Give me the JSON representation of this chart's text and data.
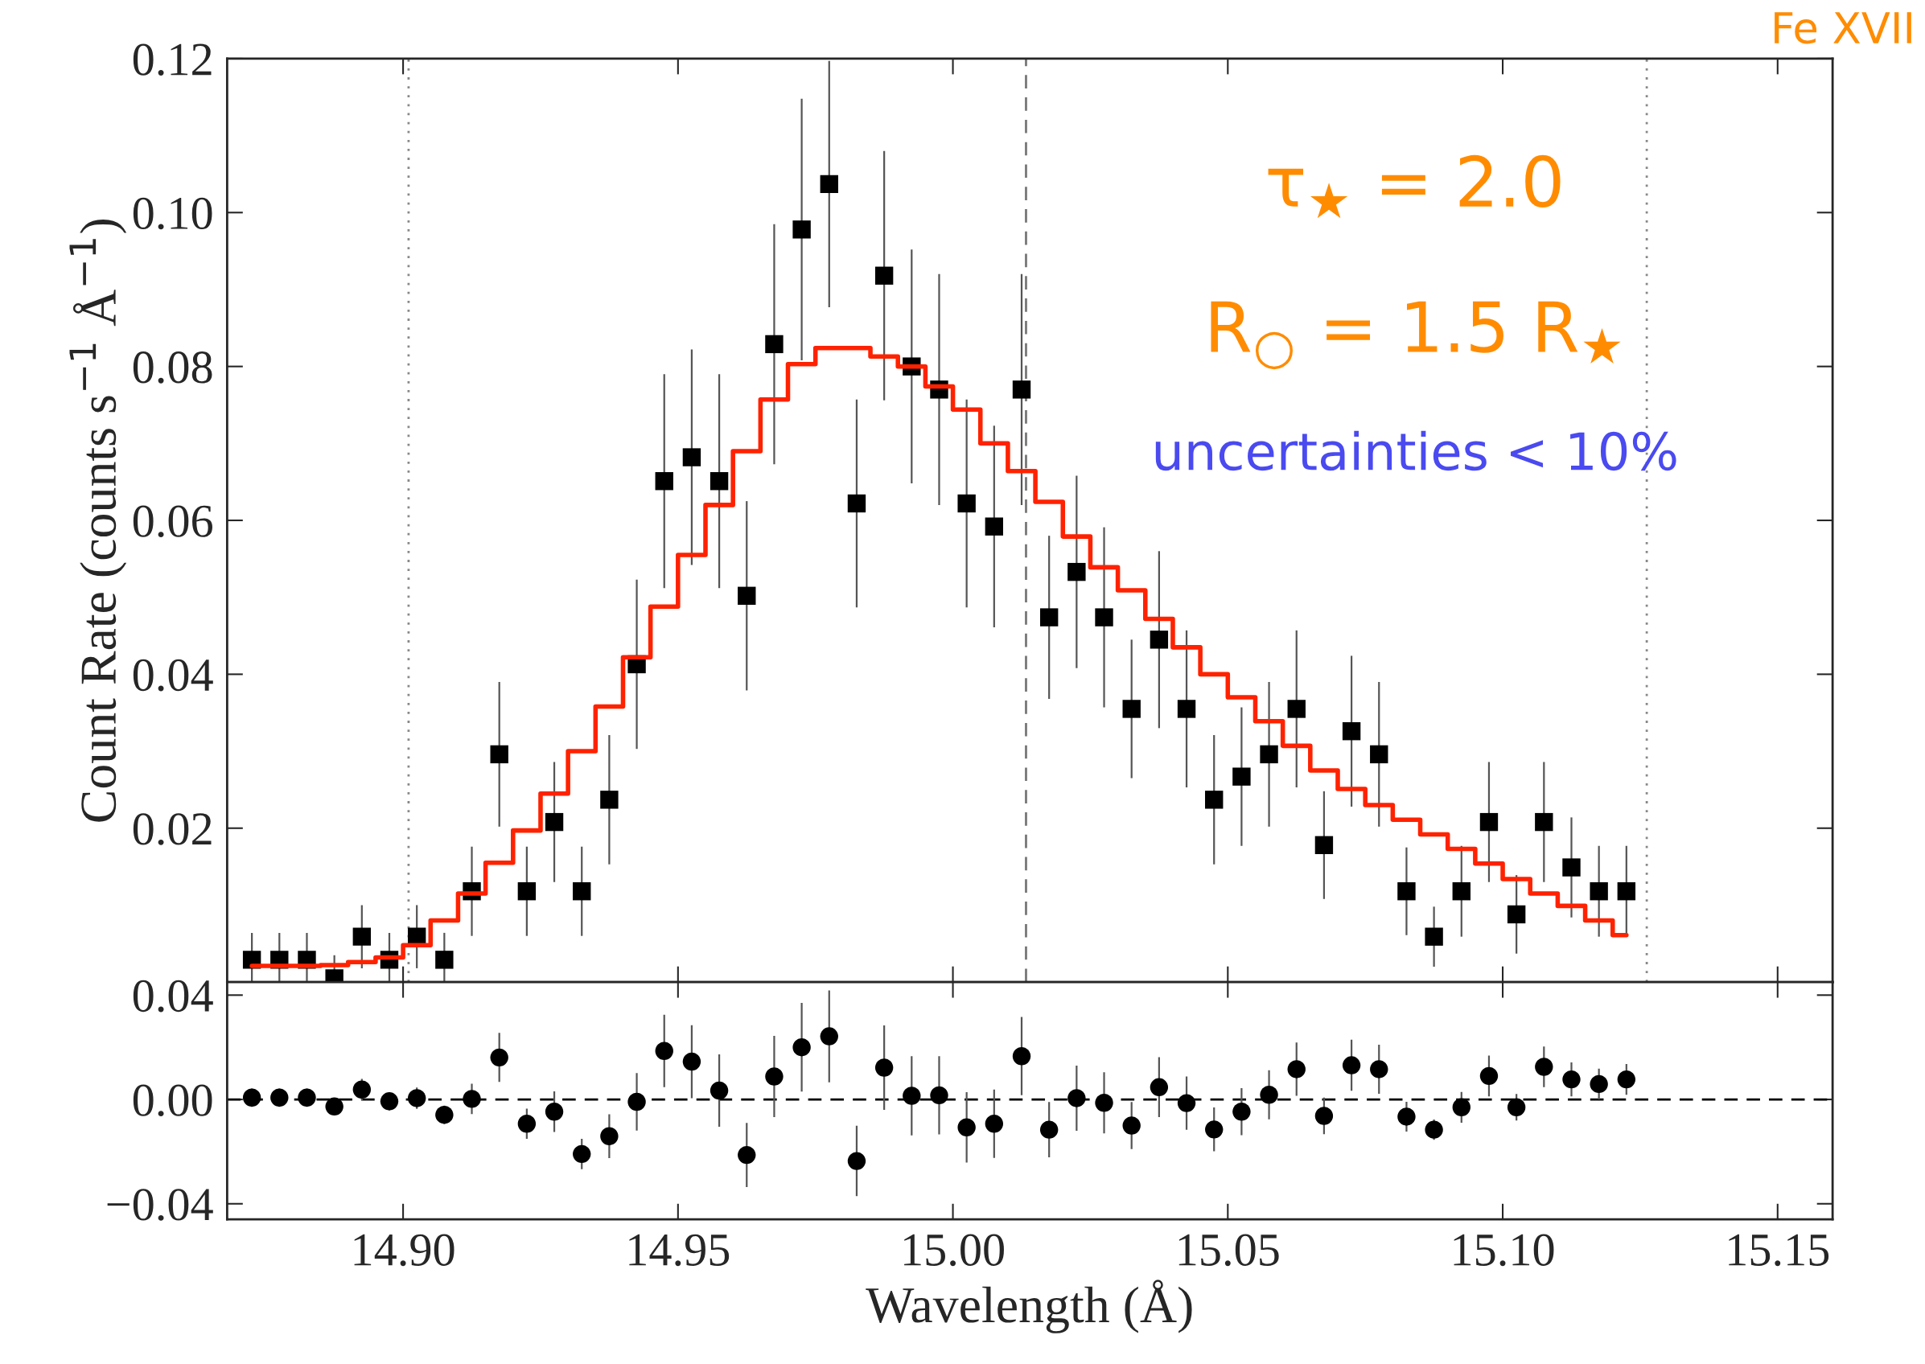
{
  "chart_data": [
    {
      "type": "scatter",
      "title": "Fe XVII",
      "ylabel": "Count Rate (counts s$^{−1}$ Å$^{−1}$)",
      "annotations": [
        "τ$_{★}$ = 2.0",
        "R$_{○}$ = 1.5 R$_{★}$",
        "uncertainties < 10%"
      ],
      "x": [
        14.8725,
        14.8775,
        14.8825,
        14.8875,
        14.8925,
        14.8975,
        14.9025,
        14.9075,
        14.9125,
        14.9175,
        14.9225,
        14.9275,
        14.9325,
        14.9375,
        14.9425,
        14.9475,
        14.9525,
        14.9575,
        14.9625,
        14.9675,
        14.9725,
        14.9775,
        14.9825,
        14.9875,
        14.9925,
        14.9975,
        15.0025,
        15.0075,
        15.0125,
        15.0175,
        15.0225,
        15.0275,
        15.0325,
        15.0375,
        15.0425,
        15.0475,
        15.0525,
        15.0575,
        15.0625,
        15.0675,
        15.0725,
        15.0775,
        15.0825,
        15.0875,
        15.0925,
        15.0975,
        15.1025,
        15.1075,
        15.1125,
        15.1175,
        15.1225
      ],
      "series": [
        {
          "color": "#000000",
          "marker": "square",
          "values": [
            0.0029,
            0.0029,
            0.0029,
            0.0005,
            0.0059,
            0.0029,
            0.0059,
            0.0029,
            0.0118,
            0.0296,
            0.0118,
            0.0208,
            0.0118,
            0.0237,
            0.0413,
            0.0651,
            0.0682,
            0.0651,
            0.0502,
            0.0829,
            0.0978,
            0.1037,
            0.0622,
            0.0918,
            0.08,
            0.077,
            0.0622,
            0.0592,
            0.077,
            0.0474,
            0.0533,
            0.0474,
            0.0355,
            0.0445,
            0.0355,
            0.0237,
            0.0267,
            0.0296,
            0.0355,
            0.0178,
            0.0326,
            0.0296,
            0.0118,
            0.0059,
            0.0118,
            0.0208,
            0.0088,
            0.0208,
            0.0149,
            0.0118,
            0.0118
          ],
          "errors": [
            0.0035,
            0.0035,
            0.0035,
            0.003,
            0.0041,
            0.0035,
            0.0041,
            0.0035,
            0.0058,
            0.0094,
            0.0058,
            0.0078,
            0.0058,
            0.0084,
            0.011,
            0.0139,
            0.014,
            0.0139,
            0.0123,
            0.0156,
            0.017,
            0.016,
            0.0135,
            0.0162,
            0.0152,
            0.015,
            0.0135,
            0.0131,
            0.015,
            0.0106,
            0.0125,
            0.0117,
            0.009,
            0.0115,
            0.0102,
            0.0084,
            0.009,
            0.0094,
            0.0102,
            0.007,
            0.0098,
            0.0094,
            0.0057,
            0.0039,
            0.0059,
            0.0078,
            0.0051,
            0.0078,
            0.0065,
            0.0059,
            0.0059
          ]
        },
        {
          "type": "step",
          "color": "#ff2200",
          "values": [
            0.0021,
            0.0021,
            0.0021,
            0.0022,
            0.0026,
            0.0032,
            0.0048,
            0.008,
            0.0115,
            0.0155,
            0.0197,
            0.0245,
            0.03,
            0.0358,
            0.0422,
            0.0488,
            0.0555,
            0.062,
            0.069,
            0.0757,
            0.0803,
            0.0824,
            0.0824,
            0.0813,
            0.08,
            0.0774,
            0.0744,
            0.07,
            0.0664,
            0.0624,
            0.0579,
            0.0539,
            0.0509,
            0.0472,
            0.0435,
            0.04,
            0.037,
            0.0339,
            0.0307,
            0.0275,
            0.0251,
            0.023,
            0.0211,
            0.0192,
            0.0173,
            0.0154,
            0.0134,
            0.0115,
            0.0099,
            0.008,
            0.0061
          ]
        }
      ],
      "xlim": [
        14.868,
        15.16
      ],
      "ylim": [
        0,
        0.12
      ],
      "xticks": [
        14.9,
        14.95,
        15.0,
        15.05,
        15.1,
        15.15
      ],
      "yticks": [
        0.02,
        0.04,
        0.06,
        0.08,
        {
          "value": 0.1,
          "label": "0.10"
        },
        0.12
      ],
      "tick_labels": "y",
      "grid": false,
      "legend": false,
      "ref_lines": [
        {
          "axis": "x",
          "value": 14.901,
          "line_style": "dotted",
          "color": "#888888"
        },
        {
          "axis": "x",
          "value": 15.0133,
          "line_style": "dashed",
          "color": "#777777"
        },
        {
          "axis": "x",
          "value": 15.1262,
          "line_style": "dotted",
          "color": "#888888"
        }
      ]
    },
    {
      "type": "scatter",
      "xlabel": "Wavelength (Å)",
      "x": [
        14.8725,
        14.8775,
        14.8825,
        14.8875,
        14.8925,
        14.8975,
        14.9025,
        14.9075,
        14.9125,
        14.9175,
        14.9225,
        14.9275,
        14.9325,
        14.9375,
        14.9425,
        14.9475,
        14.9525,
        14.9575,
        14.9625,
        14.9675,
        14.9725,
        14.9775,
        14.9825,
        14.9875,
        14.9925,
        14.9975,
        15.0025,
        15.0075,
        15.0125,
        15.0175,
        15.0225,
        15.0275,
        15.0325,
        15.0375,
        15.0425,
        15.0475,
        15.0525,
        15.0575,
        15.0625,
        15.0675,
        15.0725,
        15.0775,
        15.0825,
        15.0875,
        15.0925,
        15.0975,
        15.1025,
        15.1075,
        15.1125,
        15.1175,
        15.1225
      ],
      "series": [
        {
          "color": "#000000",
          "marker": "circle",
          "values": [
            0.0007,
            0.0007,
            0.0007,
            -0.0027,
            0.0038,
            -0.0007,
            0.0005,
            -0.0059,
            0.0002,
            0.0161,
            -0.0093,
            -0.0047,
            -0.0209,
            -0.0141,
            -0.0009,
            0.0186,
            0.0145,
            0.0034,
            -0.0213,
            0.0088,
            0.02,
            0.0242,
            -0.0236,
            0.0122,
            0.0014,
            0.0016,
            -0.0107,
            -0.0093,
            0.0166,
            -0.0116,
            0.0005,
            -0.0013,
            -0.01,
            0.0047,
            -0.0014,
            -0.0115,
            -0.0047,
            0.0018,
            0.0116,
            -0.0063,
            0.0131,
            0.0116,
            -0.0066,
            -0.0116,
            -0.003,
            0.009,
            -0.003,
            0.0125,
            0.0077,
            0.0059,
            0.0077
          ],
          "errors": [
            0.0035,
            0.0035,
            0.0035,
            0.003,
            0.0041,
            0.0035,
            0.0041,
            0.0035,
            0.0058,
            0.0094,
            0.0058,
            0.0078,
            0.0058,
            0.0084,
            0.011,
            0.0139,
            0.014,
            0.0139,
            0.0123,
            0.0156,
            0.017,
            0.0176,
            0.0135,
            0.0162,
            0.0152,
            0.015,
            0.0135,
            0.0131,
            0.015,
            0.0106,
            0.0125,
            0.0117,
            0.009,
            0.0115,
            0.0102,
            0.0084,
            0.009,
            0.0094,
            0.0102,
            0.007,
            0.0098,
            0.0094,
            0.0057,
            0.0039,
            0.0059,
            0.0078,
            0.0051,
            0.0078,
            0.0065,
            0.0059,
            0.0059
          ]
        }
      ],
      "xlim": [
        14.868,
        15.16
      ],
      "ylim": [
        -0.046,
        0.045
      ],
      "xticks": [
        {
          "value": 14.9,
          "label": "14.90"
        },
        14.95,
        {
          "value": 15.0,
          "label": "15.00"
        },
        15.05,
        {
          "value": 15.1,
          "label": "15.10"
        },
        15.15
      ],
      "yticks": [
        {
          "value": -0.04,
          "label": "−0.04"
        },
        {
          "value": 0,
          "label": "0.00"
        },
        0.04
      ],
      "grid": false,
      "legend": false,
      "ref_lines": [
        {
          "axis": "y",
          "value": 0,
          "line_style": "dashed",
          "color": "#000000"
        }
      ]
    }
  ]
}
